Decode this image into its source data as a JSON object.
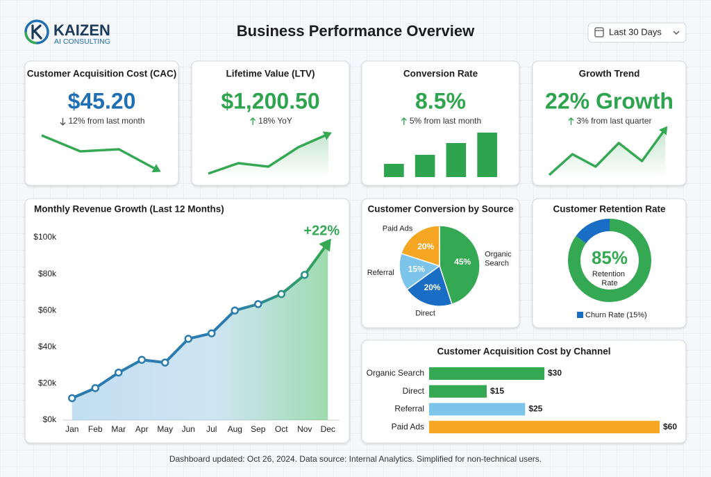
{
  "header": {
    "logo": "KAIZEN",
    "logo_subtitle": "AI CONSULTING",
    "title": "Business Performance Overview",
    "date_range": "Last 30 Days"
  },
  "kpis": [
    {
      "title": "Customer Acquisition Cost (CAC)",
      "value": "$45.20",
      "change": "12% from last month",
      "direction": "down",
      "color": "#1f6fb5",
      "trend": {
        "type": "line",
        "values": [
          60,
          37,
          40,
          10
        ],
        "ylim": [
          0,
          70
        ],
        "color": "#34a853",
        "area": false
      }
    },
    {
      "title": "Lifetime Value (LTV)",
      "value": "$1,200.50",
      "change": "18% YoY",
      "direction": "up",
      "color": "#2ea44f",
      "trend": {
        "type": "line",
        "values": [
          5,
          20,
          15,
          43,
          62
        ],
        "ylim": [
          0,
          70
        ],
        "color": "#34a853",
        "area": true
      }
    },
    {
      "title": "Conversion Rate",
      "value": "8.5%",
      "change": "5% from last month",
      "direction": "up",
      "color": "#2ea44f",
      "trend": {
        "type": "bar",
        "values": [
          19,
          32,
          49,
          64
        ],
        "ylim": [
          0,
          70
        ],
        "color": "#2ea44f",
        "area": false
      }
    },
    {
      "title": "Growth Trend",
      "value": "22% Growth",
      "change": "3% from last quarter",
      "direction": "up",
      "color": "#2ea44f",
      "trend": {
        "type": "line",
        "values": [
          3,
          33,
          15,
          49,
          23,
          69
        ],
        "ylim": [
          0,
          70
        ],
        "color": "#34a853",
        "area": true
      }
    }
  ],
  "chart_data": [
    {
      "type": "line",
      "title": "Monthly Revenue Growth (Last 12 Months)",
      "categories": [
        "Jan",
        "Feb",
        "Mar",
        "Apr",
        "May",
        "Jun",
        "Jul",
        "Aug",
        "Sep",
        "Oct",
        "Nov",
        "Dec"
      ],
      "values": [
        12,
        17.5,
        26,
        33,
        31.5,
        44.5,
        47.5,
        60,
        63.5,
        69,
        79.5,
        97
      ],
      "ylim": [
        0,
        100
      ],
      "yticks": [
        {
          "value": 0,
          "label": "$0k"
        },
        {
          "value": 20,
          "label": "$20k"
        },
        {
          "value": 40,
          "label": "$40k"
        },
        {
          "value": 60,
          "label": "$60k"
        },
        {
          "value": 80,
          "label": "$80k"
        },
        {
          "value": 100,
          "label": "$100k"
        }
      ],
      "annotation": "+22%",
      "color": "#2b7bb0",
      "end_color": "#34a853"
    },
    {
      "type": "pie",
      "title": "Customer Conversion by Source",
      "categories": [
        "Organic Search",
        "Direct",
        "Referral",
        "Paid Ads"
      ],
      "values": [
        45,
        20,
        15,
        20
      ],
      "value_labels": [
        "45%",
        "20%",
        "15%",
        "20%"
      ],
      "colors": [
        "#34a853",
        "#1a6dc4",
        "#7cc4ea",
        "#f5a623"
      ]
    },
    {
      "type": "donut",
      "title": "Customer Retention Rate",
      "categories": [
        "Retention Rate",
        "Churn Rate (15%)"
      ],
      "values": [
        85,
        15
      ],
      "value_labels": [
        "85%",
        null
      ],
      "colors": [
        "#34a853",
        "#1a6dc4"
      ]
    },
    {
      "type": "hbar",
      "title": "Customer Acquisition Cost by Channel",
      "categories": [
        "Organic Search",
        "Direct",
        "Referral",
        "Paid Ads"
      ],
      "values": [
        30,
        15,
        25,
        60
      ],
      "value_labels": [
        "$30",
        "$15",
        "$25",
        "$60"
      ],
      "colors": [
        "#34a853",
        "#34a853",
        "#7cc4ea",
        "#f5a623"
      ],
      "xlim": [
        0,
        60
      ]
    }
  ],
  "footer": "Dashboard updated: Oct 26, 2024. Data source: Internal Analytics. Simplified for non-technical users."
}
